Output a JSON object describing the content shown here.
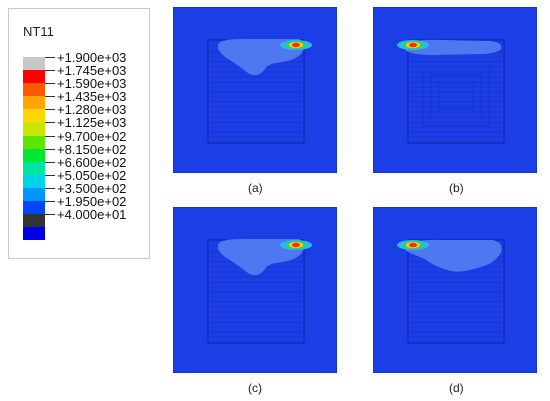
{
  "legend": {
    "title": "NT11",
    "entries": [
      {
        "label": "+1.900e+03",
        "color": "#c8c8c8"
      },
      {
        "label": "+1.745e+03",
        "color": "#ff0000"
      },
      {
        "label": "+1.590e+03",
        "color": "#ff5a00"
      },
      {
        "label": "+1.435e+03",
        "color": "#ffa500"
      },
      {
        "label": "+1.280e+03",
        "color": "#ffd700"
      },
      {
        "label": "+1.125e+03",
        "color": "#c8e600"
      },
      {
        "label": "+9.700e+02",
        "color": "#5ae600"
      },
      {
        "label": "+8.150e+02",
        "color": "#00e632"
      },
      {
        "label": "+6.600e+02",
        "color": "#00e6a0"
      },
      {
        "label": "+5.050e+02",
        "color": "#00d2e6"
      },
      {
        "label": "+3.500e+02",
        "color": "#0096ff"
      },
      {
        "label": "+1.950e+02",
        "color": "#0046ff"
      },
      {
        "label": "+4.000e+01",
        "color": "#333333"
      }
    ],
    "extra_swatch_color": "#0000e6"
  },
  "panels": [
    {
      "caption": "(a)"
    },
    {
      "caption": "(b)"
    },
    {
      "caption": "(c)"
    },
    {
      "caption": "(d)"
    }
  ]
}
